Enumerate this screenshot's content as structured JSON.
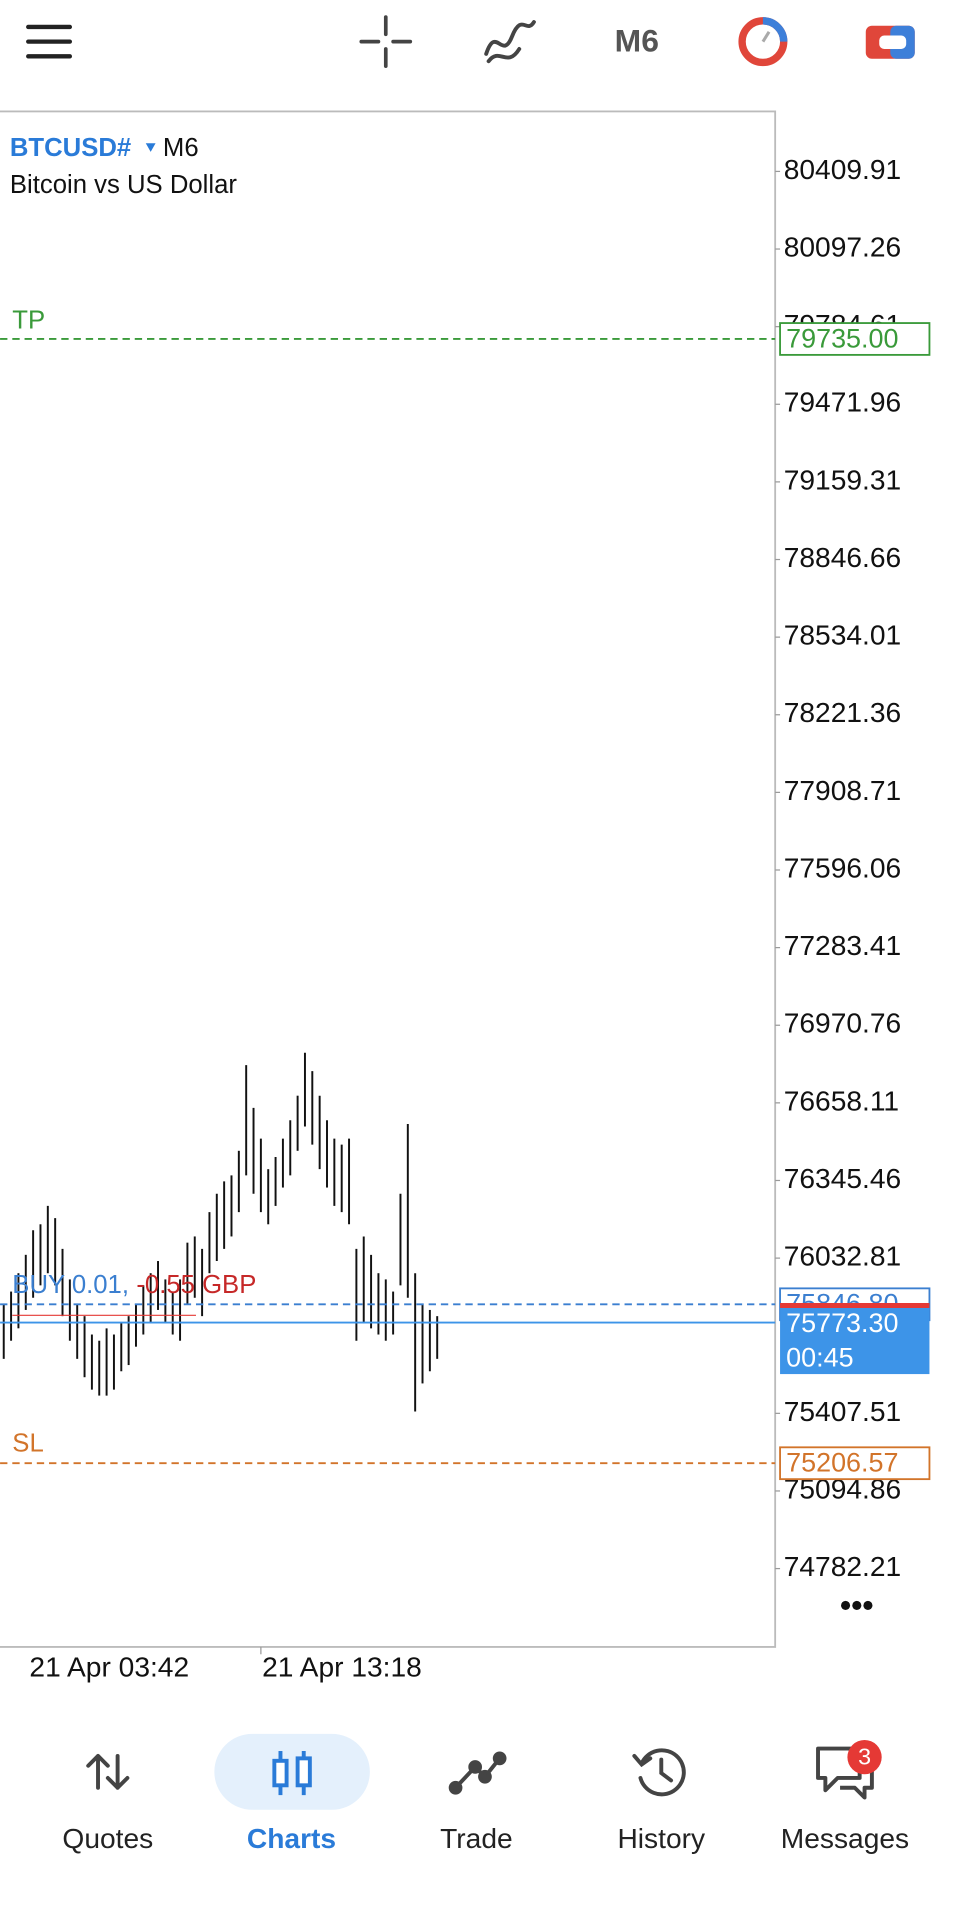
{
  "toolbar": {
    "timeframe": "M6"
  },
  "chart_data": {
    "type": "ohlc",
    "symbol": "BTCUSD#",
    "timeframe": "M6",
    "description": "Bitcoin vs US Dollar",
    "color": "#111111",
    "high": [
      75849,
      75898,
      75972,
      76046,
      76145,
      76169,
      76243,
      76194,
      76070,
      75947,
      75849,
      75799,
      75725,
      75700,
      75750,
      75725,
      75774,
      75799,
      75849,
      75923,
      75972,
      76021,
      75947,
      75898,
      75947,
      76095,
      76120,
      76070,
      76218,
      76292,
      76342,
      76366,
      76465,
      76810,
      76638,
      76514,
      76391,
      76440,
      76514,
      76588,
      76687,
      76860,
      76786,
      76687,
      76588,
      76514,
      76490,
      76514,
      76070,
      76120,
      76046,
      75972,
      75947,
      75898,
      76292,
      76573,
      75972,
      75849,
      75824,
      75799
    ],
    "low": [
      75627,
      75700,
      75750,
      75824,
      75873,
      75923,
      75972,
      75923,
      75799,
      75700,
      75627,
      75553,
      75503,
      75479,
      75479,
      75503,
      75577,
      75602,
      75676,
      75725,
      75774,
      75824,
      75774,
      75725,
      75700,
      75849,
      75873,
      75799,
      75972,
      76021,
      76070,
      76120,
      76218,
      76366,
      76292,
      76218,
      76169,
      76243,
      76317,
      76366,
      76465,
      76563,
      76490,
      76391,
      76317,
      76243,
      76218,
      76169,
      75700,
      75774,
      75750,
      75725,
      75700,
      75725,
      75923,
      75873,
      75415,
      75528,
      75577,
      75627
    ],
    "ylim": [
      74466.6,
      80646.6
    ],
    "yticks": [
      80409.91,
      80097.26,
      79784.61,
      79471.96,
      79159.31,
      78846.66,
      78534.01,
      78221.36,
      77908.71,
      77596.06,
      77283.41,
      76970.76,
      76658.11,
      76345.46,
      76032.81,
      75407.51,
      75094.86,
      74782.21
    ],
    "x_labels": [
      "21 Apr 03:42",
      "21 Apr 13:18"
    ],
    "take_profit": {
      "name": "TP",
      "value": 79735,
      "value_label": "79735.00",
      "color": "#3a9a3a"
    },
    "stop_loss": {
      "name": "SL",
      "value": 75206.57,
      "color": "#d2742a"
    },
    "position": {
      "side_label": "BUY 0.01,",
      "profit": "-0.55 GBP",
      "value": 75846.8,
      "value_label": "75846.80",
      "color": "#3b7fd0"
    },
    "bid": {
      "value": 75773.3,
      "value_label": "75773.30",
      "timer": "00:45",
      "color": "#3d94e8"
    }
  },
  "nav": {
    "items": [
      "Quotes",
      "Charts",
      "Trade",
      "History",
      "Messages"
    ],
    "messages_badge": 3
  }
}
